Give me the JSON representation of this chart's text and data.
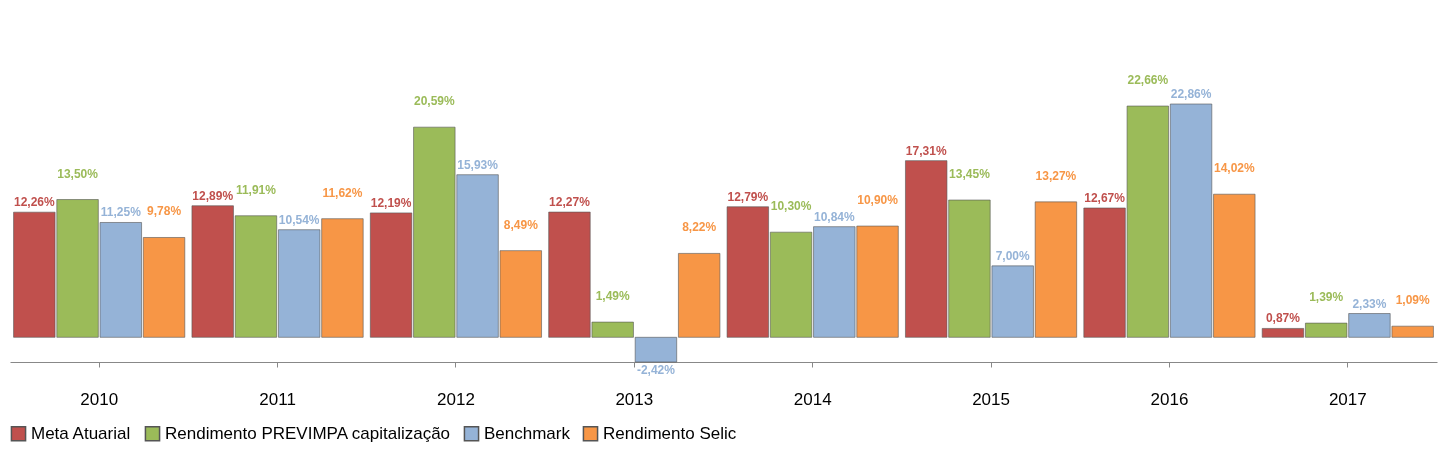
{
  "chart_data": {
    "type": "bar",
    "categories": [
      "2010",
      "2011",
      "2012",
      "2013",
      "2014",
      "2015",
      "2016",
      "2017"
    ],
    "series": [
      {
        "name": "Meta Atuarial",
        "color": "#c0504d",
        "values": [
          12.26,
          12.89,
          12.19,
          12.27,
          12.79,
          17.31,
          12.67,
          0.87
        ],
        "value_labels": [
          "12,26%",
          "12,89%",
          "12,19%",
          "12,27%",
          "12,79%",
          "17,31%",
          "12,67%",
          "0,87%"
        ]
      },
      {
        "name": "Rendimento PREVIMPA capitalização",
        "color": "#9bbb59",
        "values": [
          13.5,
          11.91,
          20.59,
          1.49,
          10.3,
          13.45,
          22.66,
          1.39
        ],
        "value_labels": [
          "13,50%",
          "11,91%",
          "20,59%",
          "1,49%",
          "10,30%",
          "13,45%",
          "22,66%",
          "1,39%"
        ]
      },
      {
        "name": "Benchmark",
        "color": "#95b3d7",
        "values": [
          11.25,
          10.54,
          15.93,
          -2.42,
          10.84,
          7.0,
          22.86,
          2.33
        ],
        "value_labels": [
          "11,25%",
          "10,54%",
          "15,93%",
          "-2,42%",
          "10,84%",
          "7,00%",
          "22,86%",
          "2,33%"
        ]
      },
      {
        "name": "Rendimento Selic",
        "color": "#f79646",
        "values": [
          9.78,
          11.62,
          8.49,
          8.22,
          10.9,
          13.27,
          14.02,
          1.09
        ],
        "value_labels": [
          "9,78%",
          "11,62%",
          "8,49%",
          "8,22%",
          "10,90%",
          "13,27%",
          "14,02%",
          "1,09%"
        ]
      }
    ],
    "legend": "bottom",
    "grid": false
  }
}
